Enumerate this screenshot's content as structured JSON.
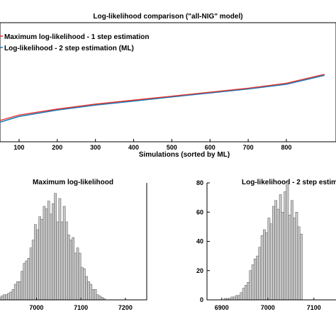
{
  "chart_data": [
    {
      "type": "line",
      "title": "Log-likelihood comparison (\"all-NIG\" model)",
      "xlabel": "Simulations (sorted by ML)",
      "ylabel": "",
      "xlim": [
        50,
        930
      ],
      "xticks": [
        100,
        200,
        300,
        400,
        500,
        600,
        700,
        800
      ],
      "ylim": [
        6800,
        7400
      ],
      "legend": "top-left",
      "series": [
        {
          "name": "Maximum log-likelihood - 1 step estimation",
          "color": "#e8312b",
          "x": [
            0,
            100,
            200,
            300,
            400,
            500,
            600,
            700,
            800,
            900
          ],
          "values": [
            6880,
            6935,
            6965,
            6990,
            7010,
            7030,
            7050,
            7070,
            7095,
            7140
          ]
        },
        {
          "name": "Log-likelihood - 2 step estimation (ML)",
          "color": "#1f78b4",
          "x": [
            0,
            100,
            200,
            300,
            400,
            500,
            600,
            700,
            800,
            900
          ],
          "values": [
            6870,
            6928,
            6960,
            6985,
            7005,
            7026,
            7046,
            7066,
            7090,
            7135
          ]
        }
      ]
    },
    {
      "type": "bar",
      "title": "Maximum log-likelihood",
      "xticks": [
        7000,
        7100,
        7200
      ],
      "bin_width": 5,
      "bin_start": 6905,
      "values": [
        1,
        1,
        2,
        3,
        4,
        4,
        5,
        6,
        8,
        12,
        14,
        14,
        22,
        28,
        30,
        32,
        40,
        46,
        58,
        54,
        64,
        62,
        72,
        70,
        76,
        66,
        74,
        82,
        60,
        78,
        60,
        72,
        60,
        50,
        46,
        48,
        36,
        40,
        36,
        25,
        24,
        18,
        14,
        12,
        8,
        8,
        4,
        3,
        2,
        1
      ],
      "bar_color": "#c8c8c8"
    },
    {
      "type": "bar",
      "title": "Log-likelihood - 2 step estim",
      "xticks": [
        6900,
        7000,
        7100
      ],
      "yticks": [
        0,
        20,
        40,
        60,
        80
      ],
      "ylim": [
        0,
        80
      ],
      "bin_width": 5,
      "bin_start": 6905,
      "values": [
        1,
        1,
        1,
        2,
        2,
        3,
        3,
        5,
        8,
        10,
        12,
        20,
        24,
        28,
        30,
        36,
        44,
        48,
        46,
        56,
        52,
        64,
        68,
        62,
        72,
        60,
        74,
        80,
        58,
        68,
        56,
        60,
        50,
        45
      ],
      "bar_color": "#c8c8c8"
    }
  ]
}
